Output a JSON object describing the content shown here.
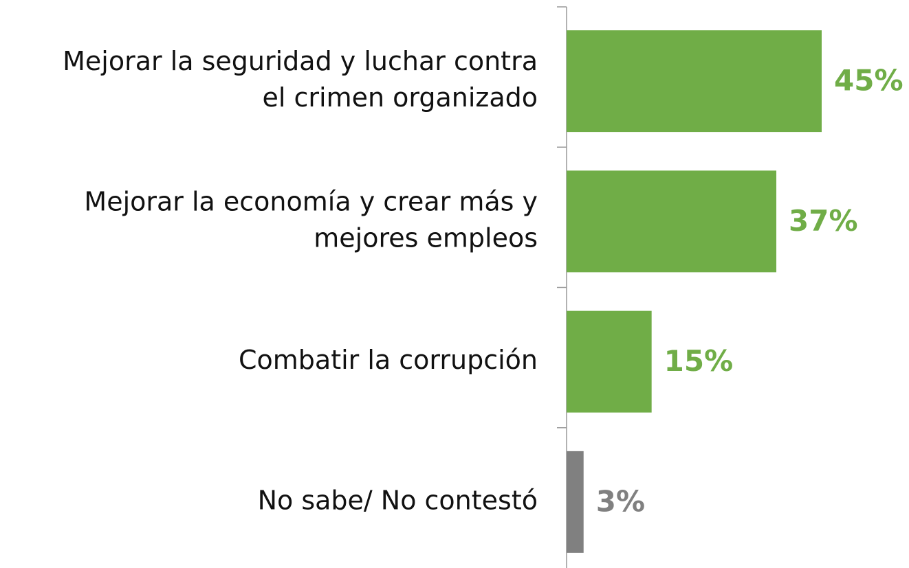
{
  "chart_data": {
    "type": "barh",
    "categories": [
      [
        "Mejorar la seguridad y luchar contra",
        "el crimen organizado"
      ],
      [
        "Mejorar la economía y crear más y",
        "mejores empleos"
      ],
      [
        "Combatir la corrupción"
      ],
      [
        "No sabe/ No contestó"
      ]
    ],
    "values": [
      45,
      37,
      15,
      3
    ],
    "value_labels": [
      "45%",
      "37%",
      "15%",
      "3%"
    ],
    "colors": [
      "#70ad47",
      "#70ad47",
      "#70ad47",
      "#808080"
    ]
  }
}
